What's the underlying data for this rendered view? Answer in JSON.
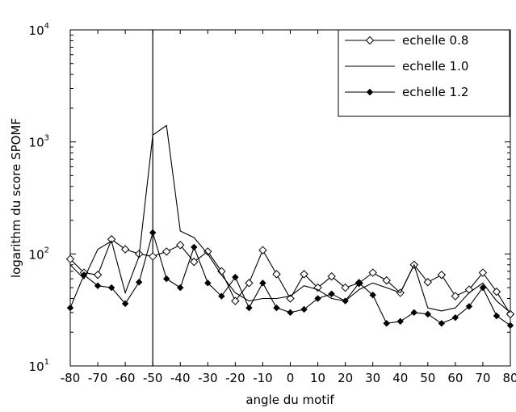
{
  "chart_data": {
    "type": "line",
    "xlabel": "angle du motif",
    "ylabel": "logarithm du score SPOMF",
    "xlim": [
      -80,
      80
    ],
    "ylim": [
      10,
      10000
    ],
    "yscale": "log",
    "grid": false,
    "legend_position": "top-right",
    "x_ticks": [
      "-80",
      "-70",
      "-60",
      "-50",
      "-40",
      "-30",
      "-20",
      "-10",
      "0",
      "10",
      "20",
      "30",
      "40",
      "50",
      "60",
      "70",
      "80"
    ],
    "y_ticks": [
      {
        "base": "10",
        "exp": "1"
      },
      {
        "base": "10",
        "exp": "2"
      },
      {
        "base": "10",
        "exp": "3"
      },
      {
        "base": "10",
        "exp": "4"
      }
    ],
    "reference_line_x": -50,
    "x": [
      -80,
      -75,
      -70,
      -65,
      -60,
      -55,
      -50,
      -45,
      -40,
      -35,
      -30,
      -25,
      -20,
      -15,
      -10,
      -5,
      0,
      5,
      10,
      15,
      20,
      25,
      30,
      35,
      40,
      45,
      50,
      55,
      60,
      65,
      70,
      75,
      80
    ],
    "series": [
      {
        "name": "echelle 0.8",
        "marker": "diamond-open",
        "values": [
          90,
          68,
          65,
          135,
          110,
          100,
          95,
          105,
          120,
          85,
          105,
          70,
          38,
          55,
          108,
          66,
          40,
          66,
          50,
          63,
          50,
          55,
          68,
          58,
          45,
          80,
          56,
          65,
          42,
          48,
          68,
          46,
          29
        ]
      },
      {
        "name": "echelle 1.0",
        "marker": "none",
        "values": [
          80,
          60,
          110,
          130,
          45,
          95,
          1150,
          1400,
          160,
          140,
          100,
          65,
          45,
          38,
          40,
          40,
          42,
          52,
          48,
          40,
          38,
          48,
          55,
          50,
          45,
          80,
          33,
          31,
          33,
          45,
          55,
          38,
          30
        ]
      },
      {
        "name": "echelle 1.2",
        "marker": "diamond-filled",
        "values": [
          33,
          65,
          52,
          50,
          36,
          56,
          155,
          60,
          50,
          115,
          55,
          42,
          62,
          33,
          55,
          33,
          30,
          32,
          40,
          44,
          38,
          55,
          43,
          24,
          25,
          30,
          29,
          24,
          27,
          34,
          50,
          28,
          23
        ]
      }
    ]
  }
}
